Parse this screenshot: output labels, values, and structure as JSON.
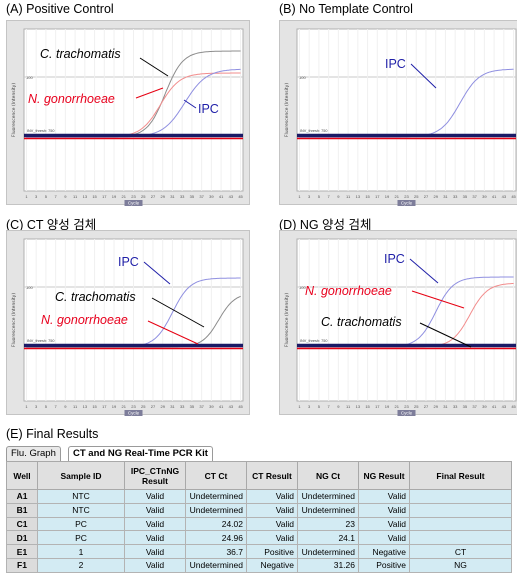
{
  "panels": [
    {
      "title": "(A) Positive Control",
      "annotations": {
        "ct": "C. trachomatis",
        "ng": "N. gonorrhoeae",
        "ipc": "IPC"
      }
    },
    {
      "title": "(B) No Template Control",
      "annotations": {
        "ipc": "IPC"
      }
    },
    {
      "title": "(C) CT 양성 검체",
      "annotations": {
        "ipc": "IPC",
        "ct": "C. trachomatis",
        "ng": "N. gonorrhoeae"
      }
    },
    {
      "title": "(D) NG 양성 검체",
      "annotations": {
        "ipc": "IPC",
        "ng": "N. gonorrhoeae",
        "ct": "C. trachomatis"
      }
    }
  ],
  "plot_common": {
    "ylabel": "Fluorescence (Intensity)",
    "xlabel": "Cycle",
    "threshold_label": "INV_thresh: 750",
    "y_tick": "100",
    "x_ticks": [
      "1",
      "3",
      "5",
      "7",
      "9",
      "11",
      "13",
      "15",
      "17",
      "19",
      "21",
      "23",
      "25",
      "27",
      "29",
      "31",
      "33",
      "35",
      "37",
      "39",
      "41",
      "43",
      "45"
    ]
  },
  "colors": {
    "ct_curve": "#8c8c8c",
    "ng_curve": "#f28c8c",
    "ipc_curve": "#8f8fe0",
    "threshold_navy": "#1a1a66",
    "threshold_red": "#e60012"
  },
  "results": {
    "title": "(E) Final Results",
    "tabs": [
      "Flu. Graph",
      "CT and NG Real-Time PCR Kit"
    ],
    "headers": [
      "Well",
      "Sample ID",
      "IPC_CTnNG Result",
      "CT Ct",
      "CT Result",
      "NG Ct",
      "NG Result",
      "Final Result"
    ],
    "rows": [
      [
        "A1",
        "NTC",
        "Valid",
        "Undetermined",
        "Valid",
        "Undetermined",
        "Valid",
        ""
      ],
      [
        "B1",
        "NTC",
        "Valid",
        "Undetermined",
        "Valid",
        "Undetermined",
        "Valid",
        ""
      ],
      [
        "C1",
        "PC",
        "Valid",
        "24.02",
        "Valid",
        "23",
        "Valid",
        ""
      ],
      [
        "D1",
        "PC",
        "Valid",
        "24.96",
        "Valid",
        "24.1",
        "Valid",
        ""
      ],
      [
        "E1",
        "1",
        "Valid",
        "36.7",
        "Positive",
        "Undetermined",
        "Negative",
        "CT"
      ],
      [
        "F1",
        "2",
        "Valid",
        "Undetermined",
        "Negative",
        "31.26",
        "Positive",
        "NG"
      ]
    ]
  }
}
